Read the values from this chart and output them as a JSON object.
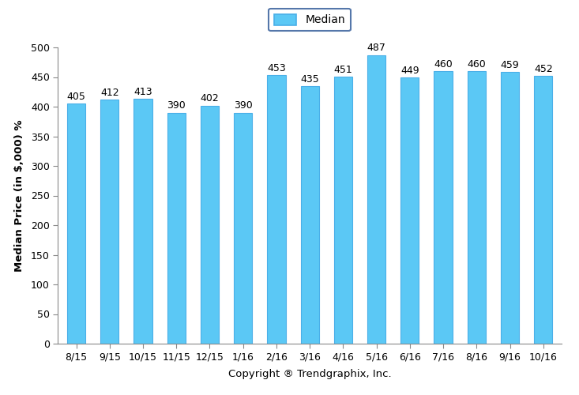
{
  "categories": [
    "8/15",
    "9/15",
    "10/15",
    "11/15",
    "12/15",
    "1/16",
    "2/16",
    "3/16",
    "4/16",
    "5/16",
    "6/16",
    "7/16",
    "8/16",
    "9/16",
    "10/16"
  ],
  "values": [
    405,
    412,
    413,
    390,
    402,
    390,
    453,
    435,
    451,
    487,
    449,
    460,
    460,
    459,
    452
  ],
  "bar_color": "#5BC8F5",
  "bar_edge_color": "#4AAFE8",
  "ylabel": "Median Price (in $,000) %",
  "xlabel": "Copyright ® Trendgraphix, Inc.",
  "legend_label": "Median",
  "ylim": [
    0,
    500
  ],
  "yticks": [
    0,
    50,
    100,
    150,
    200,
    250,
    300,
    350,
    400,
    450,
    500
  ],
  "tick_fontsize": 9,
  "axis_label_fontsize": 9.5,
  "legend_fontsize": 10,
  "bar_width": 0.55,
  "annotation_fontsize": 9,
  "background_color": "#ffffff",
  "grid_color": "#d0d0d0",
  "legend_edge_color": "#5577aa"
}
